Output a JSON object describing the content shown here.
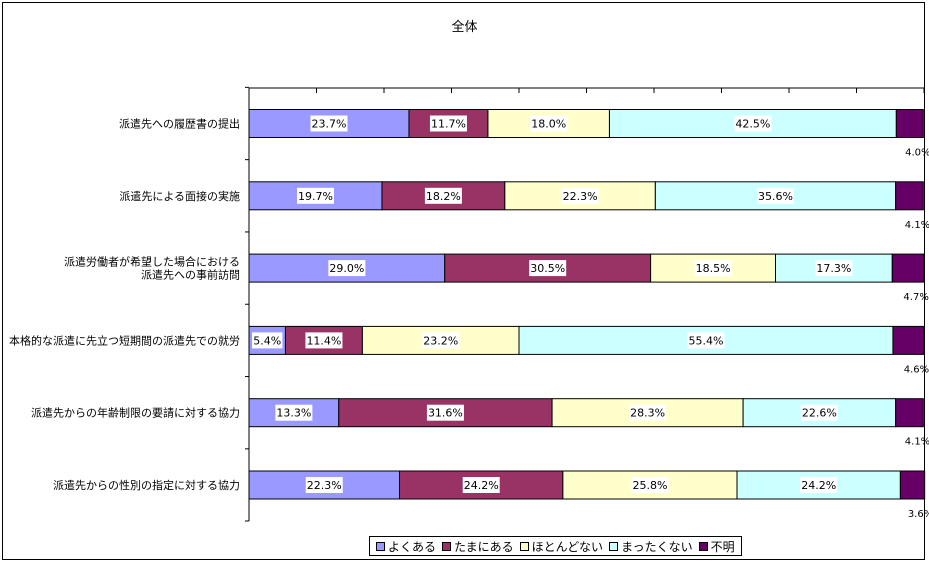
{
  "chart_data": {
    "type": "bar",
    "orientation": "horizontal",
    "stacked": "percent",
    "title": "全体",
    "categories": [
      "派遣先への履歴書の提出",
      "派遣先による面接の実施",
      "派遣労働者が希望した場合における\n派遣先への事前訪問",
      "本格的な派遣に先立つ短期間の派遣先での就労",
      "派遣先からの年齢制限の要請に対する協力",
      "派遣先からの性別の指定に対する協力"
    ],
    "series": [
      {
        "name": "よくある",
        "color": "#9999ff",
        "values": [
          23.7,
          19.7,
          29.0,
          5.4,
          13.3,
          22.3
        ]
      },
      {
        "name": "たまにある",
        "color": "#993366",
        "values": [
          11.7,
          18.2,
          30.5,
          11.4,
          31.6,
          24.2
        ]
      },
      {
        "name": "ほとんどない",
        "color": "#ffffcc",
        "values": [
          18.0,
          22.3,
          18.5,
          23.2,
          28.3,
          25.8
        ]
      },
      {
        "name": "まったくない",
        "color": "#ccffff",
        "values": [
          42.5,
          35.6,
          17.3,
          55.4,
          22.6,
          24.2
        ]
      },
      {
        "name": "不明",
        "color": "#660066",
        "values": [
          4.0,
          4.1,
          4.7,
          4.6,
          4.1,
          3.6
        ]
      }
    ],
    "value_format": "percent_1dp",
    "xlim": [
      0,
      100
    ],
    "grid": false,
    "legend": "bottom"
  }
}
